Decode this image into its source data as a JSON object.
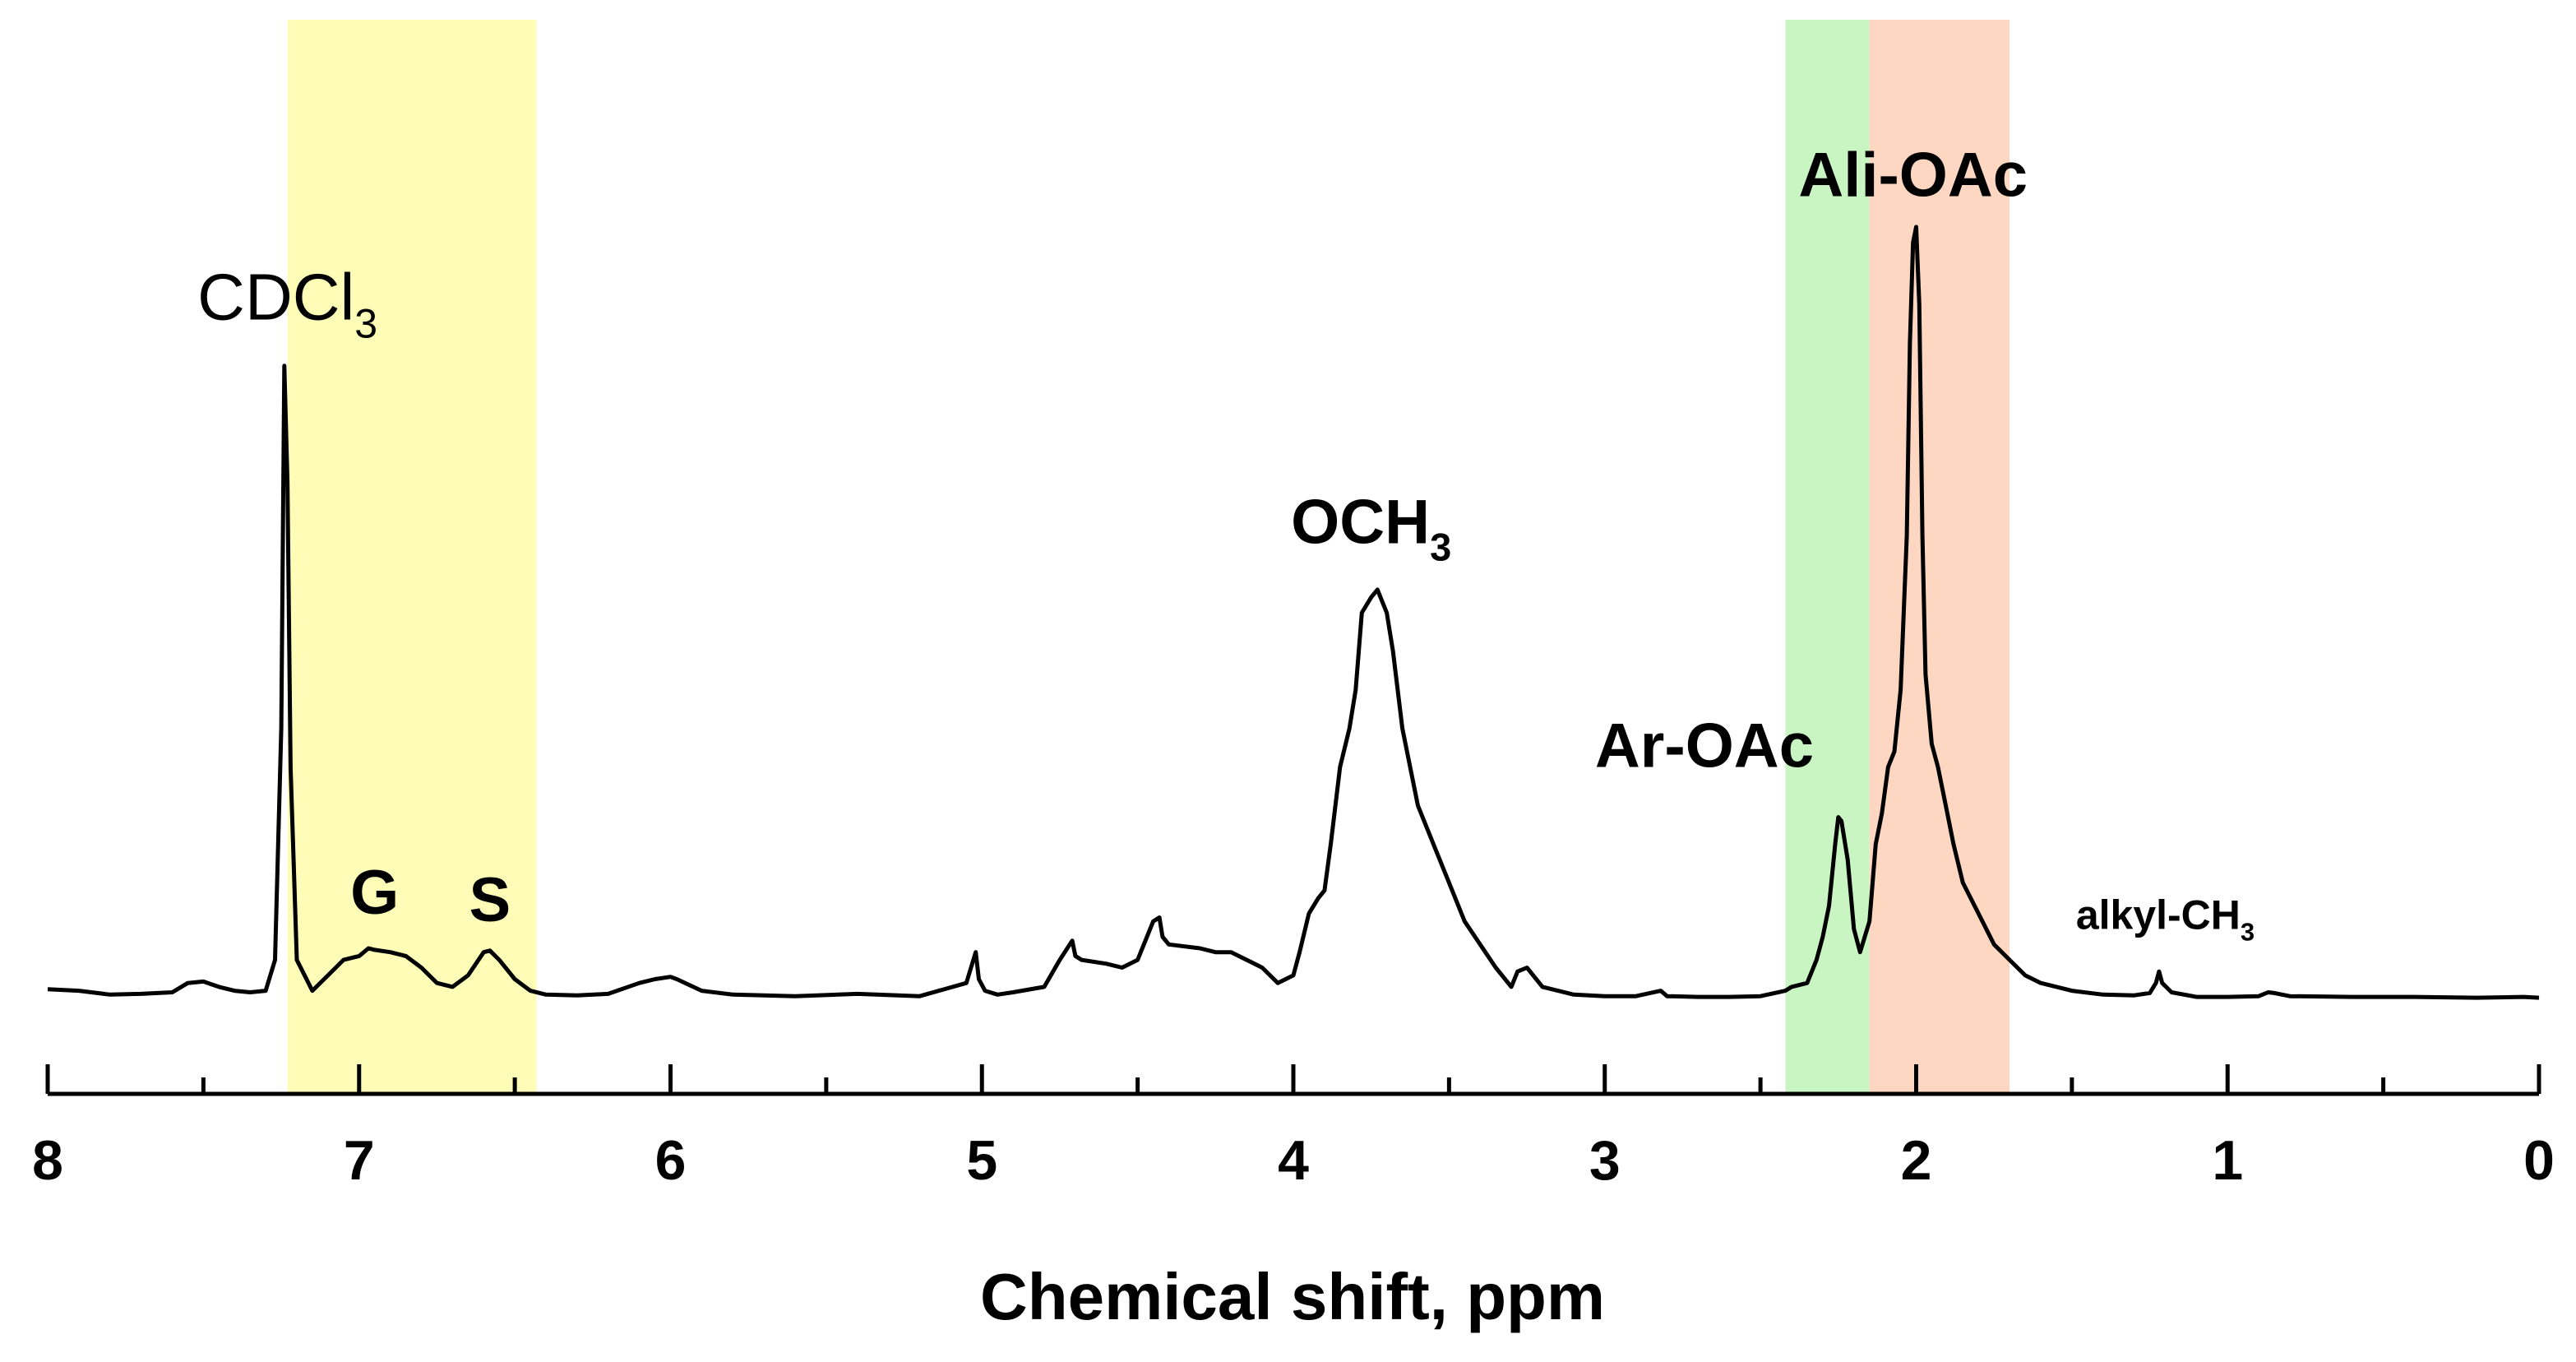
{
  "chart_data": {
    "type": "line",
    "title": "",
    "xlabel": "Chemical shift, ppm",
    "ylabel": "",
    "xlim": [
      8,
      0
    ],
    "x_reversed": true,
    "xticks": [
      8,
      7,
      6,
      5,
      4,
      3,
      2,
      1,
      0
    ],
    "xtick_labels": [
      "8",
      "7",
      "6",
      "5",
      "4",
      "3",
      "2",
      "1",
      "0"
    ],
    "y_axis_visible": false,
    "grid": false,
    "legend": "none",
    "colors": {
      "line": "#000000",
      "aromatic_band": "#fdfdb8",
      "ar_oac_band": "#c9f5c3",
      "ali_oac_band": "#fdd7c2"
    },
    "bands": [
      {
        "name": "aromatic",
        "from": 7.23,
        "to": 6.43,
        "color": "#fdfdb8"
      },
      {
        "name": "ar-oac",
        "from": 2.42,
        "to": 2.15,
        "color": "#c9f5c3"
      },
      {
        "name": "ali-oac",
        "from": 2.15,
        "to": 1.7,
        "color": "#fdd7c2"
      }
    ],
    "series": [
      {
        "x": [
          8.0,
          7.9,
          7.8,
          7.7,
          7.6,
          7.55,
          7.5,
          7.45,
          7.4,
          7.35,
          7.3,
          7.27,
          7.25,
          7.24,
          7.23,
          7.22,
          7.2,
          7.15,
          7.1,
          7.05,
          7.0,
          6.97,
          6.95,
          6.9,
          6.85,
          6.8,
          6.75,
          6.7,
          6.65,
          6.6,
          6.58,
          6.55,
          6.5,
          6.45,
          6.4,
          6.3,
          6.2,
          6.1,
          6.05,
          6.0,
          5.98,
          5.9,
          5.8,
          5.6,
          5.4,
          5.2,
          5.05,
          5.02,
          5.01,
          4.99,
          4.95,
          4.9,
          4.8,
          4.75,
          4.71,
          4.7,
          4.68,
          4.6,
          4.55,
          4.5,
          4.45,
          4.43,
          4.42,
          4.4,
          4.3,
          4.25,
          4.2,
          4.1,
          4.05,
          4.0,
          3.98,
          3.95,
          3.92,
          3.9,
          3.88,
          3.85,
          3.82,
          3.8,
          3.78,
          3.75,
          3.73,
          3.72,
          3.7,
          3.68,
          3.65,
          3.6,
          3.55,
          3.5,
          3.45,
          3.4,
          3.35,
          3.3,
          3.28,
          3.25,
          3.2,
          3.1,
          3.0,
          2.9,
          2.82,
          2.8,
          2.7,
          2.6,
          2.5,
          2.42,
          2.4,
          2.35,
          2.32,
          2.3,
          2.28,
          2.26,
          2.25,
          2.24,
          2.22,
          2.2,
          2.18,
          2.15,
          2.13,
          2.11,
          2.09,
          2.07,
          2.05,
          2.03,
          2.02,
          2.01,
          2.0,
          1.99,
          1.98,
          1.97,
          1.95,
          1.93,
          1.9,
          1.88,
          1.85,
          1.8,
          1.75,
          1.7,
          1.65,
          1.6,
          1.5,
          1.4,
          1.3,
          1.25,
          1.23,
          1.22,
          1.21,
          1.18,
          1.1,
          1.0,
          0.9,
          0.87,
          0.85,
          0.8,
          0.6,
          0.4,
          0.2,
          0.05,
          0.0
        ],
        "y": [
          0.012,
          0.01,
          0.005,
          0.006,
          0.008,
          0.02,
          0.022,
          0.015,
          0.01,
          0.008,
          0.01,
          0.05,
          0.35,
          0.82,
          0.67,
          0.3,
          0.05,
          0.01,
          0.03,
          0.05,
          0.055,
          0.065,
          0.063,
          0.06,
          0.055,
          0.04,
          0.02,
          0.015,
          0.03,
          0.06,
          0.062,
          0.05,
          0.025,
          0.01,
          0.005,
          0.004,
          0.006,
          0.02,
          0.025,
          0.028,
          0.025,
          0.01,
          0.005,
          0.003,
          0.006,
          0.003,
          0.02,
          0.06,
          0.025,
          0.01,
          0.005,
          0.008,
          0.015,
          0.05,
          0.075,
          0.055,
          0.05,
          0.045,
          0.04,
          0.05,
          0.1,
          0.105,
          0.08,
          0.07,
          0.065,
          0.06,
          0.06,
          0.04,
          0.02,
          0.03,
          0.06,
          0.11,
          0.13,
          0.14,
          0.2,
          0.3,
          0.35,
          0.4,
          0.5,
          0.52,
          0.53,
          0.52,
          0.5,
          0.45,
          0.35,
          0.25,
          0.2,
          0.15,
          0.1,
          0.07,
          0.04,
          0.015,
          0.035,
          0.04,
          0.015,
          0.005,
          0.003,
          0.003,
          0.01,
          0.003,
          0.002,
          0.002,
          0.003,
          0.01,
          0.015,
          0.02,
          0.05,
          0.08,
          0.12,
          0.2,
          0.235,
          0.23,
          0.18,
          0.09,
          0.06,
          0.1,
          0.2,
          0.24,
          0.3,
          0.32,
          0.4,
          0.6,
          0.85,
          0.98,
          1.0,
          0.9,
          0.6,
          0.42,
          0.33,
          0.3,
          0.24,
          0.2,
          0.15,
          0.11,
          0.07,
          0.05,
          0.03,
          0.02,
          0.01,
          0.005,
          0.004,
          0.007,
          0.02,
          0.035,
          0.02,
          0.008,
          0.002,
          0.002,
          0.003,
          0.008,
          0.007,
          0.003,
          0.002,
          0.002,
          0.001,
          0.002,
          0.001
        ]
      }
    ],
    "annotations": [
      {
        "text": "CDCl",
        "sub": "3",
        "x": 7.23,
        "y": 0.88,
        "bold": false,
        "size": 80
      },
      {
        "text": "G",
        "sub": "",
        "x": 6.95,
        "y": 0.11,
        "bold": true,
        "size": 76
      },
      {
        "text": "S",
        "sub": "",
        "x": 6.58,
        "y": 0.1,
        "bold": true,
        "size": 76
      },
      {
        "text": "OCH",
        "sub": "3",
        "x": 3.75,
        "y": 0.59,
        "bold": true,
        "size": 76
      },
      {
        "text": "Ar-OAc",
        "sub": "",
        "x": 2.68,
        "y": 0.3,
        "bold": true,
        "size": 76
      },
      {
        "text": "Ali-OAc",
        "sub": "",
        "x": 2.01,
        "y": 1.04,
        "bold": true,
        "size": 76
      },
      {
        "text": "alkyl-CH",
        "sub": "3",
        "x": 1.2,
        "y": 0.09,
        "bold": true,
        "size": 50
      }
    ]
  }
}
